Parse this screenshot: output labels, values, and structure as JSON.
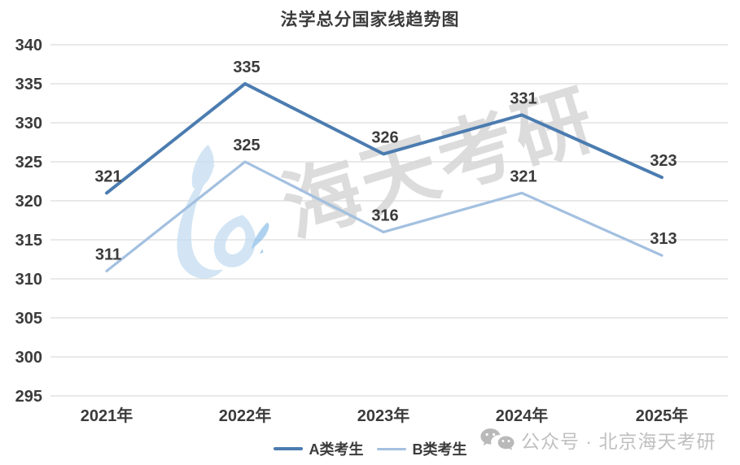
{
  "chart_data": {
    "type": "line",
    "title": "法学总分国家线趋势图",
    "categories": [
      "2021年",
      "2022年",
      "2023年",
      "2024年",
      "2025年"
    ],
    "series": [
      {
        "name": "A类考生",
        "values": [
          321,
          335,
          326,
          331,
          323
        ],
        "color": "#4b7cb0"
      },
      {
        "name": "B类考生",
        "values": [
          311,
          325,
          316,
          321,
          313
        ],
        "color": "#a3c0e0"
      }
    ],
    "y_ticks": [
      340,
      335,
      330,
      325,
      320,
      315,
      310,
      305,
      300,
      295
    ],
    "ylim": [
      295,
      340
    ],
    "y_tick_step": 5,
    "grid": "horizontal",
    "legend_position": "bottom",
    "data_labels": true
  },
  "watermark": {
    "brand_text": "海天考研",
    "logo": "haitian-brush-logo"
  },
  "footer": {
    "wechat_label": "公众号 · 北京海天考研",
    "icon": "wechat-icon"
  },
  "colors": {
    "series_a": "#4b7cb0",
    "series_b": "#a3c0e0",
    "grid": "#dcdcdc",
    "text": "#3b3b3b",
    "footer_text": "#c0c0c0",
    "watermark_text": "#d6d6d6",
    "watermark_logo": "#c9dff2",
    "watermark_splash": "#8dbfe8",
    "background": "#ffffff"
  }
}
